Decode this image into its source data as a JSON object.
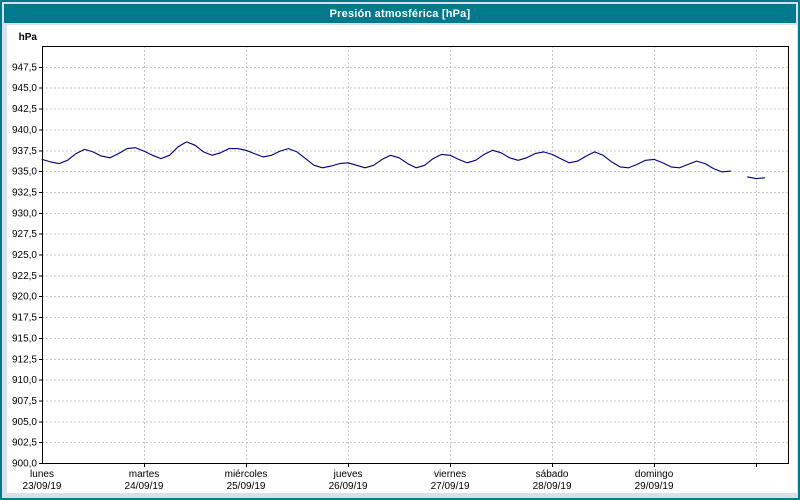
{
  "window": {
    "title_bar_label": "Presión atmosférica [hPa]"
  },
  "colors": {
    "titlebar": "#00798c",
    "frame": "#00798c",
    "page_bg": "#d8e1eb",
    "plot_bg": "#ffffff",
    "grid": "#c6c6c6",
    "axis": "#000000",
    "line": "#000080"
  },
  "chart_data": {
    "type": "line",
    "title": "Presión atmosférica [hPa]",
    "ylabel": "hPa",
    "xlabel": "",
    "ylim": [
      900,
      950
    ],
    "ytick_top": 947.5,
    "ytick_step": 2.5,
    "ytick_labels": [
      "947,5",
      "945,0",
      "942,5",
      "940,0",
      "937,5",
      "935,0",
      "932,5",
      "930,0",
      "927,5",
      "925,0",
      "922,5",
      "920,0",
      "917,5",
      "915,0",
      "912,5",
      "910,0",
      "907,5",
      "905,0",
      "902,5",
      "900,0"
    ],
    "grid": true,
    "legend_position": "none",
    "x_span_hours": 175.5,
    "days": [
      {
        "name": "lunes",
        "date": "23/09/19"
      },
      {
        "name": "martes",
        "date": "24/09/19"
      },
      {
        "name": "miércoles",
        "date": "25/09/19"
      },
      {
        "name": "jueves",
        "date": "26/09/19"
      },
      {
        "name": "viernes",
        "date": "27/09/19"
      },
      {
        "name": "sábado",
        "date": "28/09/19"
      },
      {
        "name": "domingo",
        "date": "29/09/19"
      }
    ],
    "series": [
      {
        "name": "presión atmosférica",
        "unit": "hPa",
        "color": "#000080",
        "segments": [
          {
            "start_hour": 0,
            "step_hours": 2,
            "values": [
              936.4,
              936.1,
              935.9,
              936.3,
              937.1,
              937.6,
              937.3,
              936.8,
              936.6,
              937.1,
              937.7,
              937.8,
              937.4,
              936.9,
              936.5,
              936.9,
              937.9,
              938.5,
              938.1,
              937.3,
              936.9,
              937.2,
              937.7,
              937.7,
              937.5,
              937.1,
              936.7,
              936.9,
              937.4,
              937.7,
              937.3,
              936.5,
              935.7,
              935.4,
              935.6,
              935.9,
              936.0,
              935.7,
              935.4,
              935.7,
              936.4,
              936.9,
              936.6,
              935.9,
              935.4,
              935.7,
              936.5,
              937.0,
              936.9,
              936.4,
              936.0,
              936.3,
              937.0,
              937.5,
              937.2,
              936.6,
              936.3,
              936.6,
              937.1,
              937.3,
              937.0,
              936.5,
              936.0,
              936.2,
              936.8,
              937.3,
              936.9,
              936.1,
              935.5,
              935.4,
              935.8,
              936.3,
              936.4,
              936.0,
              935.5,
              935.4,
              935.8,
              936.2,
              935.9,
              935.3,
              934.9,
              935.0
            ]
          },
          {
            "start_hour": 166,
            "step_hours": 2,
            "values": [
              934.3,
              934.1,
              934.2
            ]
          }
        ]
      }
    ]
  }
}
